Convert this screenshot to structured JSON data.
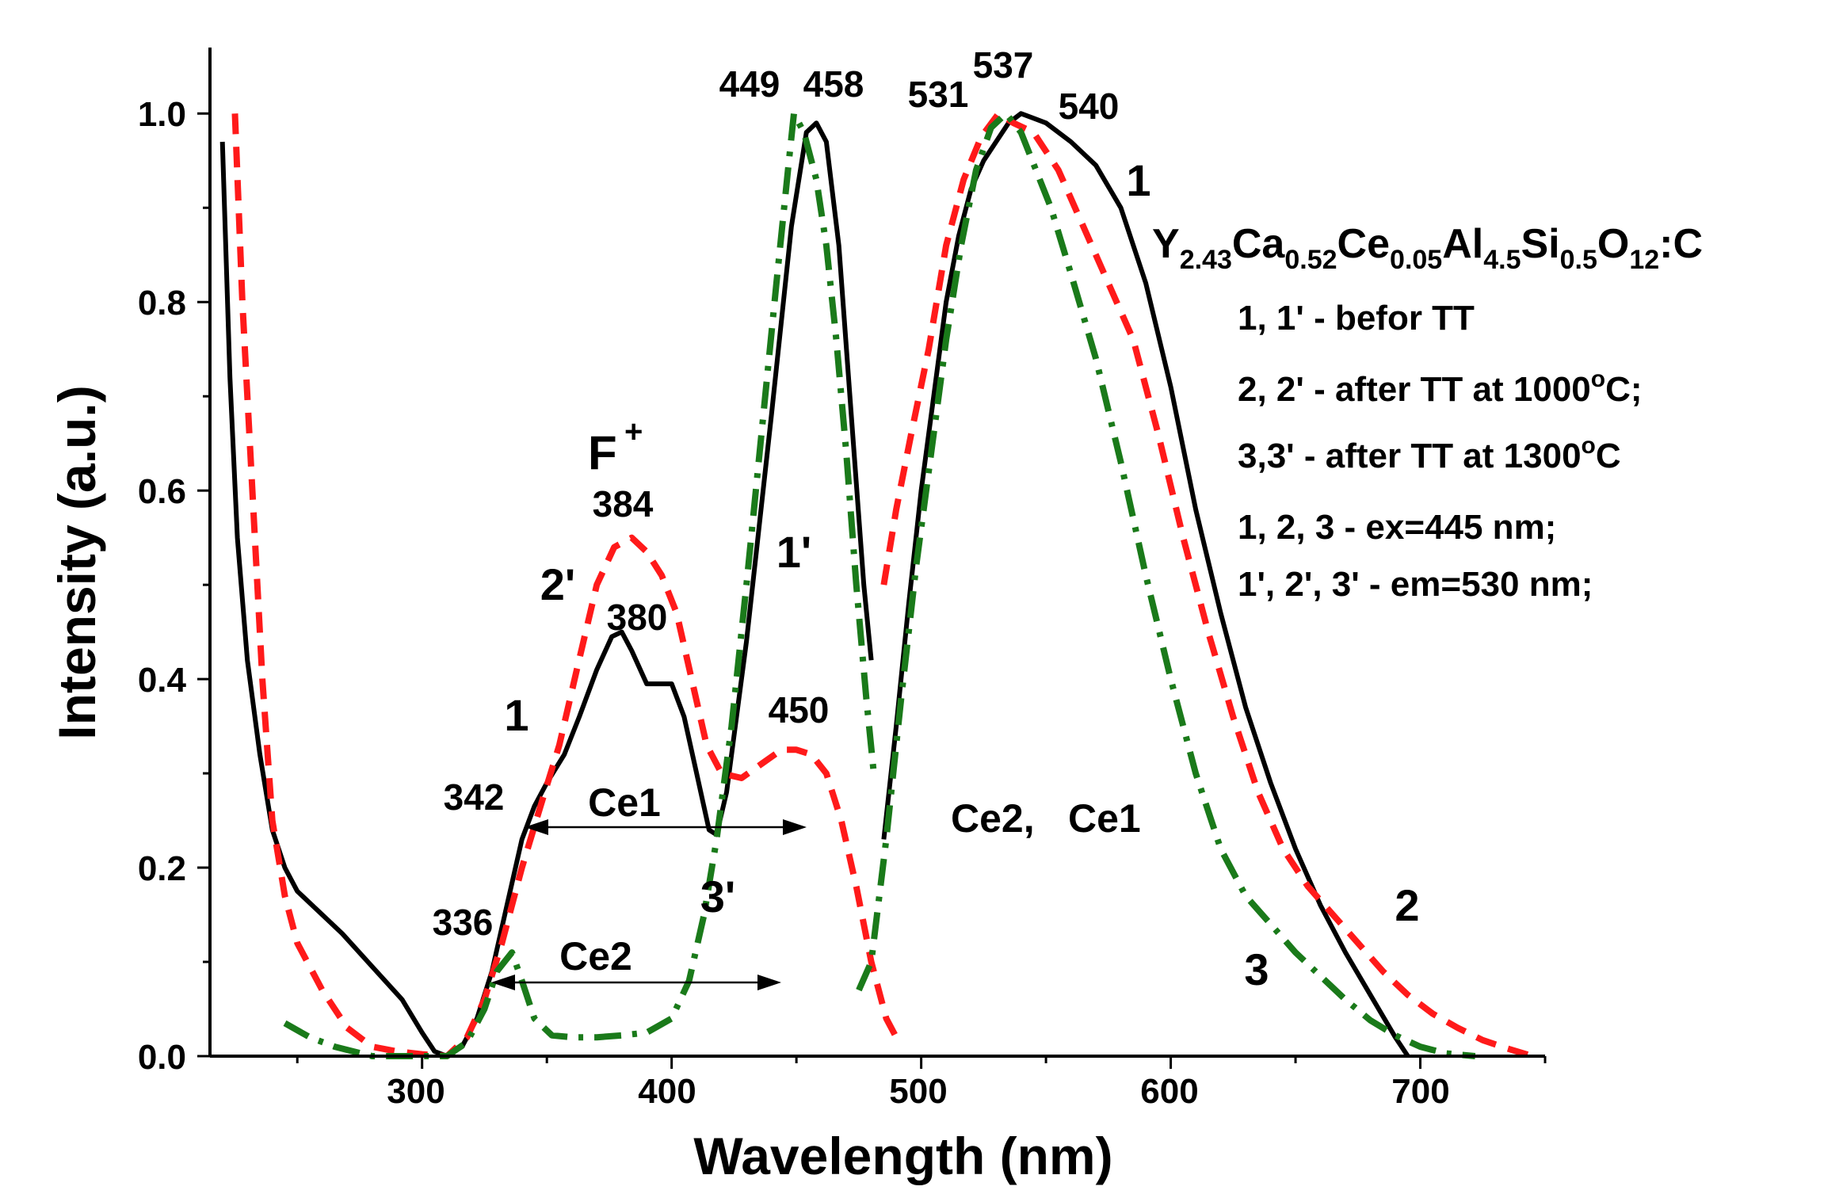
{
  "chart_data": {
    "type": "line",
    "title": "",
    "xlabel": "Wavelength (nm)",
    "ylabel": "Intensity (a.u.)",
    "xlim": [
      215,
      750
    ],
    "ylim": [
      0,
      1.07
    ],
    "xticks": [
      "300",
      "400",
      "500",
      "600",
      "700"
    ],
    "yticks": [
      "0.0",
      "0.2",
      "0.4",
      "0.6",
      "0.8",
      "1.0"
    ],
    "series": [
      {
        "name": "1 (black, emission)",
        "color": "#000000",
        "style": "solid",
        "segments": [
          [
            [
              220,
              0.97
            ],
            [
              223,
              0.72
            ],
            [
              226,
              0.55
            ],
            [
              230,
              0.42
            ],
            [
              235,
              0.32
            ],
            [
              240,
              0.24
            ],
            [
              245,
              0.2
            ],
            [
              250,
              0.175
            ],
            [
              258,
              0.155
            ],
            [
              268,
              0.13
            ],
            [
              280,
              0.095
            ],
            [
              292,
              0.06
            ],
            [
              300,
              0.025
            ],
            [
              305,
              0.005
            ],
            [
              310,
              0.0
            ],
            [
              316,
              0.01
            ],
            [
              322,
              0.04
            ],
            [
              328,
              0.09
            ],
            [
              334,
              0.16
            ],
            [
              340,
              0.23
            ],
            [
              345,
              0.265
            ],
            [
              350,
              0.29
            ],
            [
              357,
              0.32
            ],
            [
              363,
              0.36
            ],
            [
              370,
              0.41
            ],
            [
              376,
              0.445
            ],
            [
              380,
              0.45
            ],
            [
              384,
              0.43
            ],
            [
              390,
              0.395
            ],
            [
              395,
              0.395
            ],
            [
              400,
              0.395
            ],
            [
              405,
              0.36
            ],
            [
              410,
              0.3
            ],
            [
              415,
              0.24
            ],
            [
              418,
              0.235
            ],
            [
              422,
              0.28
            ],
            [
              430,
              0.44
            ],
            [
              440,
              0.68
            ],
            [
              448,
              0.88
            ],
            [
              454,
              0.98
            ],
            [
              458,
              0.99
            ],
            [
              462,
              0.97
            ],
            [
              467,
              0.86
            ],
            [
              472,
              0.68
            ],
            [
              477,
              0.5
            ],
            [
              480,
              0.42
            ]
          ],
          [
            [
              485,
              0.23
            ],
            [
              490,
              0.35
            ],
            [
              495,
              0.48
            ],
            [
              500,
              0.6
            ],
            [
              505,
              0.7
            ],
            [
              510,
              0.8
            ],
            [
              515,
              0.87
            ],
            [
              520,
              0.92
            ],
            [
              525,
              0.95
            ],
            [
              530,
              0.97
            ],
            [
              535,
              0.99
            ],
            [
              540,
              1.0
            ],
            [
              545,
              0.995
            ],
            [
              550,
              0.99
            ],
            [
              560,
              0.97
            ],
            [
              570,
              0.945
            ],
            [
              580,
              0.9
            ],
            [
              590,
              0.82
            ],
            [
              600,
              0.71
            ],
            [
              610,
              0.58
            ],
            [
              620,
              0.47
            ],
            [
              630,
              0.37
            ],
            [
              640,
              0.29
            ],
            [
              650,
              0.22
            ],
            [
              660,
              0.16
            ],
            [
              670,
              0.11
            ],
            [
              680,
              0.065
            ],
            [
              690,
              0.02
            ],
            [
              695,
              0.0
            ]
          ]
        ]
      },
      {
        "name": "2 / 2' (red, dashed)",
        "color": "#ff1a1a",
        "style": "dashed",
        "segments": [
          [
            [
              225,
              1.0
            ],
            [
              228,
              0.8
            ],
            [
              232,
              0.6
            ],
            [
              236,
              0.4
            ],
            [
              240,
              0.25
            ],
            [
              245,
              0.17
            ],
            [
              250,
              0.12
            ],
            [
              260,
              0.07
            ],
            [
              270,
              0.03
            ],
            [
              280,
              0.01
            ],
            [
              290,
              0.005
            ],
            [
              300,
              0.002
            ],
            [
              310,
              0.0
            ],
            [
              318,
              0.02
            ],
            [
              325,
              0.06
            ],
            [
              332,
              0.12
            ],
            [
              340,
              0.2
            ],
            [
              348,
              0.27
            ],
            [
              355,
              0.33
            ],
            [
              362,
              0.41
            ],
            [
              370,
              0.5
            ],
            [
              377,
              0.54
            ],
            [
              384,
              0.55
            ],
            [
              390,
              0.535
            ],
            [
              396,
              0.51
            ],
            [
              402,
              0.47
            ],
            [
              408,
              0.4
            ],
            [
              414,
              0.33
            ],
            [
              420,
              0.3
            ],
            [
              428,
              0.295
            ],
            [
              436,
              0.31
            ],
            [
              444,
              0.325
            ],
            [
              450,
              0.325
            ],
            [
              456,
              0.32
            ],
            [
              462,
              0.3
            ],
            [
              468,
              0.25
            ],
            [
              474,
              0.18
            ],
            [
              480,
              0.1
            ],
            [
              486,
              0.04
            ],
            [
              490,
              0.02
            ]
          ],
          [
            [
              485,
              0.5
            ],
            [
              490,
              0.58
            ],
            [
              496,
              0.66
            ],
            [
              503,
              0.75
            ],
            [
              510,
              0.86
            ],
            [
              517,
              0.93
            ],
            [
              524,
              0.975
            ],
            [
              531,
              1.0
            ],
            [
              537,
              0.99
            ],
            [
              545,
              0.98
            ],
            [
              555,
              0.94
            ],
            [
              565,
              0.88
            ],
            [
              575,
              0.82
            ],
            [
              585,
              0.76
            ],
            [
              595,
              0.66
            ],
            [
              605,
              0.55
            ],
            [
              615,
              0.45
            ],
            [
              625,
              0.36
            ],
            [
              635,
              0.28
            ],
            [
              645,
              0.22
            ],
            [
              655,
              0.18
            ],
            [
              665,
              0.15
            ],
            [
              675,
              0.12
            ],
            [
              685,
              0.09
            ],
            [
              695,
              0.065
            ],
            [
              705,
              0.045
            ],
            [
              715,
              0.03
            ],
            [
              725,
              0.017
            ],
            [
              735,
              0.008
            ],
            [
              745,
              0.0
            ]
          ]
        ]
      },
      {
        "name": "3 / 3' (green, dash-dot)",
        "color": "#1a7a1a",
        "style": "dashdot",
        "segments": [
          [
            [
              245,
              0.035
            ],
            [
              255,
              0.02
            ],
            [
              265,
              0.01
            ],
            [
              280,
              0.0
            ],
            [
              300,
              0.0
            ],
            [
              310,
              0.0
            ],
            [
              318,
              0.015
            ],
            [
              325,
              0.05
            ],
            [
              330,
              0.09
            ],
            [
              336,
              0.11
            ],
            [
              340,
              0.08
            ],
            [
              345,
              0.04
            ],
            [
              352,
              0.022
            ],
            [
              360,
              0.02
            ],
            [
              370,
              0.02
            ],
            [
              380,
              0.022
            ],
            [
              390,
              0.025
            ],
            [
              400,
              0.04
            ],
            [
              407,
              0.08
            ],
            [
              413,
              0.15
            ],
            [
              418,
              0.23
            ],
            [
              424,
              0.35
            ],
            [
              430,
              0.5
            ],
            [
              436,
              0.66
            ],
            [
              442,
              0.82
            ],
            [
              447,
              0.95
            ],
            [
              449,
              1.0
            ],
            [
              453,
              0.98
            ],
            [
              458,
              0.93
            ],
            [
              462,
              0.86
            ],
            [
              466,
              0.76
            ],
            [
              470,
              0.64
            ],
            [
              474,
              0.5
            ],
            [
              478,
              0.38
            ],
            [
              481,
              0.3
            ]
          ],
          [
            [
              475,
              0.07
            ],
            [
              480,
              0.1
            ],
            [
              486,
              0.23
            ],
            [
              492,
              0.38
            ],
            [
              498,
              0.52
            ],
            [
              504,
              0.64
            ],
            [
              510,
              0.76
            ],
            [
              516,
              0.86
            ],
            [
              522,
              0.94
            ],
            [
              528,
              0.985
            ],
            [
              534,
              1.0
            ],
            [
              540,
              0.98
            ],
            [
              546,
              0.94
            ],
            [
              552,
              0.9
            ],
            [
              560,
              0.83
            ],
            [
              570,
              0.74
            ],
            [
              580,
              0.63
            ],
            [
              590,
              0.51
            ],
            [
              600,
              0.4
            ],
            [
              610,
              0.3
            ],
            [
              620,
              0.22
            ],
            [
              630,
              0.17
            ],
            [
              640,
              0.14
            ],
            [
              650,
              0.11
            ],
            [
              660,
              0.085
            ],
            [
              670,
              0.06
            ],
            [
              680,
              0.038
            ],
            [
              690,
              0.022
            ],
            [
              700,
              0.01
            ],
            [
              710,
              0.003
            ],
            [
              722,
              0.0
            ]
          ]
        ]
      }
    ],
    "peak_labels": [
      "342",
      "336",
      "380",
      "384",
      "450",
      "449",
      "458",
      "531",
      "537",
      "540"
    ],
    "curve_labels": [
      "1",
      "1",
      "2'",
      "1'",
      "3'",
      "2",
      "3"
    ],
    "band_labels": [
      "F",
      "+",
      "Ce1",
      "Ce2",
      "Ce2,",
      "Ce1"
    ],
    "formula": {
      "parts": [
        {
          "t": "Y",
          "sub": false
        },
        {
          "t": "2.43",
          "sub": true
        },
        {
          "t": "Ca",
          "sub": false
        },
        {
          "t": "0.52",
          "sub": true
        },
        {
          "t": "Ce",
          "sub": false
        },
        {
          "t": "0.05",
          "sub": true
        },
        {
          "t": "Al",
          "sub": false
        },
        {
          "t": "4.5",
          "sub": true
        },
        {
          "t": "Si",
          "sub": false
        },
        {
          "t": "0.5",
          "sub": true
        },
        {
          "t": "O",
          "sub": false
        },
        {
          "t": "12",
          "sub": true
        },
        {
          "t": ":C",
          "sub": false
        }
      ]
    },
    "legend": {
      "l1": "1, 1' - befor TT",
      "l2a": "2, 2' - after TT at 1000",
      "l2sup": "o",
      "l2b": "C;",
      "l3a": "3,3' - after TT at 1300",
      "l3sup": "o",
      "l3b": "C",
      "l4": "1, 2, 3  - ex=445 nm;",
      "l5": "1', 2', 3' - em=530 nm;"
    }
  }
}
